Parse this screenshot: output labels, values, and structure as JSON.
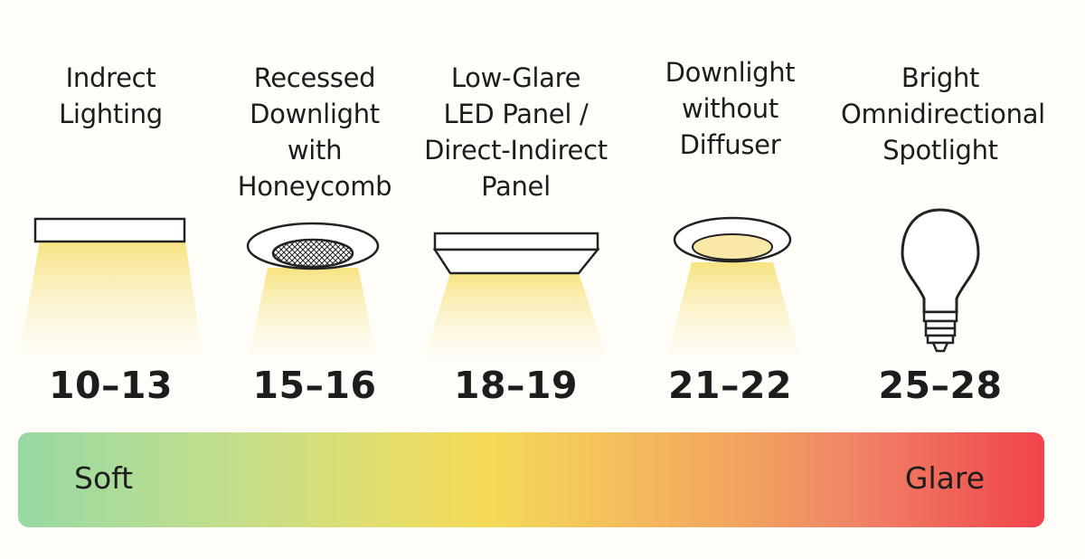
{
  "items": [
    {
      "title": "Indrect\nLighting",
      "range": "10–13",
      "icon": "indirect-lighting-fixture-icon"
    },
    {
      "title": "Recessed\nDownlight\nwith\nHoneycomb",
      "range": "15–16",
      "icon": "recessed-honeycomb-downlight-icon"
    },
    {
      "title": "Low-Glare\nLED Panel /\nDirect-Indirect\nPanel",
      "range": "18–19",
      "icon": "led-panel-icon"
    },
    {
      "title": "Downlight\nwithout\nDiffuser",
      "range": "21–22",
      "icon": "downlight-no-diffuser-icon"
    },
    {
      "title": "Bright\nOmnidirectional\nSpotlight",
      "range": "25–28",
      "icon": "light-bulb-icon"
    }
  ],
  "scale": {
    "low_label": "Soft",
    "high_label": "Glare"
  },
  "colors": {
    "scale_start": "#97d9a4",
    "scale_mid": "#f5dc58",
    "scale_end": "#f2434a",
    "beam": "#f7e79a"
  }
}
